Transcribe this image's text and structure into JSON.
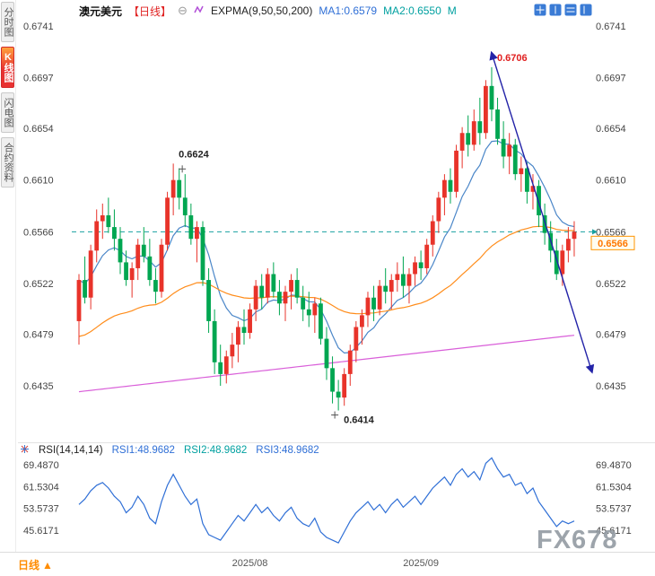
{
  "header": {
    "symbol": "澳元美元",
    "period": "【日线】",
    "collapse": "⊖",
    "indicator": "EXPMA(9,50,50,200)",
    "ma1": "MA1:0.6579",
    "ma2": "MA2:0.6550",
    "ma3": "M"
  },
  "sidebar": {
    "tabs": [
      {
        "label": "分时图",
        "active": false
      },
      {
        "label": "K线图",
        "active": true
      },
      {
        "label": "闪电图",
        "active": false
      },
      {
        "label": "合约资料",
        "active": false
      }
    ]
  },
  "rsi_header": {
    "label": "RSI(14,14,14)",
    "rsi1": "RSI1:48.9682",
    "rsi2": "RSI2:48.9682",
    "rsi3": "RSI3:48.9682"
  },
  "bottom_bar": {
    "period_label": "日线",
    "period_arrow": "▲",
    "watermark": "FX678"
  },
  "price_tag": "0.6566",
  "colors": {
    "up": "#e8332a",
    "down": "#00a651",
    "ema9": "#4a86c8",
    "ema50": "#ff8c1a",
    "ema200": "#d95fd9",
    "trendline": "#2323a8",
    "dashed_level": "#18a0a0",
    "rsi_line": "#2f6fd6",
    "price_tag": "#ff9500"
  },
  "chart_data": {
    "type": "candlestick",
    "title": "澳元美元（日线） EXPMA(9,50,50,200)",
    "y_ticks": [
      "0.6741",
      "0.6697",
      "0.6654",
      "0.6610",
      "0.6566",
      "0.6522",
      "0.6479",
      "0.6435"
    ],
    "x_labels": [
      {
        "label": "2025/08",
        "index": 29
      },
      {
        "label": "2025/09",
        "index": 58
      }
    ],
    "current_price": 0.6566,
    "dashed_level": 0.6566,
    "candles": [
      [
        0.649,
        0.653,
        0.647,
        0.6525
      ],
      [
        0.6525,
        0.6545,
        0.6505,
        0.651
      ],
      [
        0.651,
        0.6555,
        0.65,
        0.655
      ],
      [
        0.655,
        0.6585,
        0.654,
        0.6575
      ],
      [
        0.6575,
        0.659,
        0.656,
        0.658
      ],
      [
        0.658,
        0.6595,
        0.6565,
        0.657
      ],
      [
        0.657,
        0.6585,
        0.655,
        0.656
      ],
      [
        0.656,
        0.657,
        0.653,
        0.654
      ],
      [
        0.654,
        0.655,
        0.652,
        0.6525
      ],
      [
        0.6525,
        0.654,
        0.651,
        0.6535
      ],
      [
        0.6535,
        0.656,
        0.6525,
        0.6555
      ],
      [
        0.6555,
        0.657,
        0.654,
        0.6545
      ],
      [
        0.6545,
        0.656,
        0.652,
        0.6525
      ],
      [
        0.6525,
        0.6535,
        0.6505,
        0.6515
      ],
      [
        0.6515,
        0.656,
        0.651,
        0.6555
      ],
      [
        0.6555,
        0.66,
        0.655,
        0.6595
      ],
      [
        0.6595,
        0.6624,
        0.658,
        0.661
      ],
      [
        0.661,
        0.662,
        0.6585,
        0.6595
      ],
      [
        0.6595,
        0.6615,
        0.657,
        0.658
      ],
      [
        0.658,
        0.659,
        0.6555,
        0.656
      ],
      [
        0.656,
        0.6575,
        0.654,
        0.657
      ],
      [
        0.657,
        0.6575,
        0.652,
        0.6525
      ],
      [
        0.6525,
        0.6535,
        0.648,
        0.649
      ],
      [
        0.649,
        0.65,
        0.6445,
        0.6455
      ],
      [
        0.6455,
        0.647,
        0.6435,
        0.6445
      ],
      [
        0.6445,
        0.6465,
        0.6437,
        0.646
      ],
      [
        0.646,
        0.648,
        0.645,
        0.647
      ],
      [
        0.647,
        0.649,
        0.6455,
        0.6485
      ],
      [
        0.6485,
        0.65,
        0.647,
        0.648
      ],
      [
        0.648,
        0.6505,
        0.6475,
        0.65
      ],
      [
        0.65,
        0.6525,
        0.649,
        0.652
      ],
      [
        0.652,
        0.653,
        0.65,
        0.651
      ],
      [
        0.651,
        0.6535,
        0.6505,
        0.653
      ],
      [
        0.653,
        0.654,
        0.651,
        0.6515
      ],
      [
        0.6515,
        0.6525,
        0.6495,
        0.6505
      ],
      [
        0.6505,
        0.652,
        0.649,
        0.6515
      ],
      [
        0.6515,
        0.653,
        0.65,
        0.6525
      ],
      [
        0.6525,
        0.6535,
        0.6505,
        0.651
      ],
      [
        0.651,
        0.652,
        0.649,
        0.65
      ],
      [
        0.65,
        0.6515,
        0.6485,
        0.6495
      ],
      [
        0.6495,
        0.651,
        0.648,
        0.6505
      ],
      [
        0.6505,
        0.651,
        0.647,
        0.6475
      ],
      [
        0.6475,
        0.6485,
        0.644,
        0.645
      ],
      [
        0.645,
        0.646,
        0.642,
        0.643
      ],
      [
        0.643,
        0.644,
        0.6414,
        0.6425
      ],
      [
        0.6425,
        0.645,
        0.6418,
        0.6445
      ],
      [
        0.6445,
        0.647,
        0.6435,
        0.6465
      ],
      [
        0.6465,
        0.649,
        0.6455,
        0.6485
      ],
      [
        0.6485,
        0.65,
        0.647,
        0.6495
      ],
      [
        0.6495,
        0.6515,
        0.6485,
        0.651
      ],
      [
        0.651,
        0.652,
        0.649,
        0.65
      ],
      [
        0.65,
        0.6525,
        0.6495,
        0.652
      ],
      [
        0.652,
        0.6535,
        0.6505,
        0.6515
      ],
      [
        0.6515,
        0.653,
        0.65,
        0.6525
      ],
      [
        0.6525,
        0.654,
        0.6515,
        0.653
      ],
      [
        0.653,
        0.6545,
        0.651,
        0.652
      ],
      [
        0.652,
        0.6535,
        0.6505,
        0.653
      ],
      [
        0.653,
        0.6545,
        0.652,
        0.654
      ],
      [
        0.654,
        0.655,
        0.6525,
        0.6535
      ],
      [
        0.6535,
        0.656,
        0.653,
        0.6555
      ],
      [
        0.6555,
        0.658,
        0.6545,
        0.6575
      ],
      [
        0.6575,
        0.66,
        0.6565,
        0.6595
      ],
      [
        0.6595,
        0.6615,
        0.658,
        0.661
      ],
      [
        0.661,
        0.662,
        0.659,
        0.66
      ],
      [
        0.66,
        0.664,
        0.6595,
        0.6635
      ],
      [
        0.6635,
        0.6655,
        0.662,
        0.665
      ],
      [
        0.665,
        0.6665,
        0.663,
        0.664
      ],
      [
        0.664,
        0.667,
        0.6635,
        0.666
      ],
      [
        0.666,
        0.668,
        0.664,
        0.665
      ],
      [
        0.665,
        0.6695,
        0.6645,
        0.669
      ],
      [
        0.669,
        0.6706,
        0.666,
        0.667
      ],
      [
        0.667,
        0.668,
        0.664,
        0.6645
      ],
      [
        0.6645,
        0.666,
        0.662,
        0.663
      ],
      [
        0.663,
        0.665,
        0.6615,
        0.664
      ],
      [
        0.664,
        0.6645,
        0.661,
        0.6615
      ],
      [
        0.6615,
        0.663,
        0.66,
        0.662
      ],
      [
        0.662,
        0.6625,
        0.659,
        0.66
      ],
      [
        0.66,
        0.6615,
        0.6585,
        0.6605
      ],
      [
        0.6605,
        0.661,
        0.657,
        0.658
      ],
      [
        0.658,
        0.659,
        0.6555,
        0.6565
      ],
      [
        0.6565,
        0.6575,
        0.654,
        0.655
      ],
      [
        0.655,
        0.656,
        0.6525,
        0.653
      ],
      [
        0.653,
        0.6555,
        0.652,
        0.655
      ],
      [
        0.655,
        0.657,
        0.654,
        0.656
      ],
      [
        0.656,
        0.6575,
        0.6545,
        0.6566
      ]
    ],
    "annotations": [
      {
        "label": "0.6624",
        "index": 16,
        "price": 0.6624,
        "placement": "above",
        "color": "#222222",
        "marker": "plus"
      },
      {
        "label": "0.6706",
        "index": 70,
        "price": 0.6706,
        "placement": "above",
        "color": "#e02020",
        "marker": "none"
      },
      {
        "label": "0.6414",
        "index": 44,
        "price": 0.6414,
        "placement": "below",
        "color": "#222222",
        "marker": "plus"
      }
    ],
    "trendline": {
      "from_index": 70,
      "from_price": 0.6718,
      "to_index": 87,
      "to_price": 0.6447
    },
    "overlays": {
      "ema9": {
        "period": 9
      },
      "ema50": {
        "period": 50,
        "seed": 0.6475
      },
      "ema200": {
        "start": 0.643,
        "end": 0.6478
      }
    },
    "rsi": {
      "params": "RSI(14,14,14)",
      "y_ticks": [
        "69.4870",
        "61.5304",
        "53.5737",
        "45.6171"
      ],
      "values": [
        55,
        57,
        60,
        62,
        63,
        61,
        58,
        56,
        52,
        54,
        58,
        55,
        50,
        48,
        56,
        62,
        66,
        62,
        58,
        55,
        57,
        48,
        44,
        43,
        42,
        45,
        48,
        51,
        49,
        52,
        55,
        52,
        54,
        51,
        49,
        52,
        54,
        50,
        48,
        47,
        50,
        45,
        43,
        42,
        41,
        45,
        49,
        52,
        54,
        56,
        53,
        55,
        52,
        55,
        57,
        54,
        56,
        58,
        55,
        58,
        61,
        63,
        65,
        62,
        66,
        68,
        65,
        67,
        64,
        70,
        72,
        68,
        65,
        66,
        62,
        63,
        59,
        61,
        56,
        53,
        50,
        47,
        49,
        48,
        48.97
      ]
    }
  }
}
